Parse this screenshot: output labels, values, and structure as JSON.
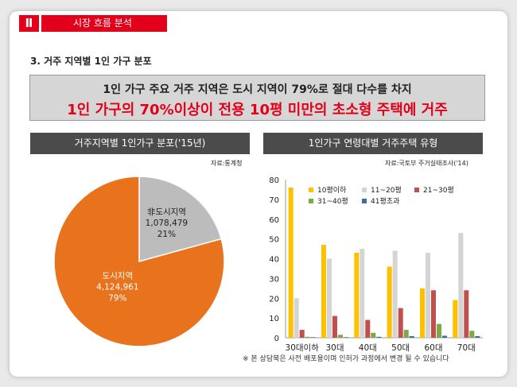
{
  "section": {
    "badge": "Ⅱ",
    "title": "시장 흐름 분석"
  },
  "subheading": "3. 거주 지역별 1인 가구 분포",
  "callout": {
    "line1": "1인 가구 주요 거주 지역은 도시 지역이 79%로 절대 다수를 차지",
    "line2": "1인 가구의 70%이상이 전용 10평 미만의 초소형 주택에 거주"
  },
  "left_panel": {
    "title": "거주지역별 1인가구 분포('15년)",
    "source": "자료:통계청"
  },
  "right_panel": {
    "title": "1인가구 연령대별 거주주택 유형",
    "source": "자료:국토부 주거실태조사('14)"
  },
  "footnote": "※ 본 상담북은 사전 배포용이며 인허가 과정에서 변경 될 수 있습니다",
  "chart_data": [
    {
      "type": "pie",
      "title": "거주지역별 1인가구 분포('15년)",
      "slices": [
        {
          "label": "도시지역",
          "value": 4124961,
          "value_text": "4,124,961",
          "percent_text": "79%",
          "color": "#e8731c"
        },
        {
          "label": "非도시지역",
          "value": 1078479,
          "value_text": "1,078,479",
          "percent_text": "21%",
          "color": "#bcbcbc"
        }
      ]
    },
    {
      "type": "bar",
      "title": "1인가구 연령대별 거주주택 유형",
      "categories": [
        "30대이하",
        "30대",
        "40대",
        "50대",
        "60대",
        "70대"
      ],
      "ylim": [
        0,
        80
      ],
      "yticks": [
        0,
        10,
        20,
        30,
        40,
        50,
        60,
        70,
        80
      ],
      "legend_position": "top",
      "series": [
        {
          "name": "10평이하",
          "color": "#ffc000",
          "values": [
            76,
            47,
            43,
            36,
            25,
            19
          ]
        },
        {
          "name": "11~20평",
          "color": "#d4d4d4",
          "values": [
            20,
            40,
            45,
            44,
            43,
            53
          ]
        },
        {
          "name": "21~30평",
          "color": "#c0504d",
          "values": [
            4,
            11,
            9,
            15,
            24,
            24
          ]
        },
        {
          "name": "31~40평",
          "color": "#7ea843",
          "values": [
            0.5,
            1.5,
            2.5,
            4,
            7,
            3.5
          ]
        },
        {
          "name": "41평초과",
          "color": "#3a6ea5",
          "values": [
            0.3,
            0.3,
            0.5,
            0.8,
            1,
            0.8
          ]
        }
      ]
    }
  ]
}
